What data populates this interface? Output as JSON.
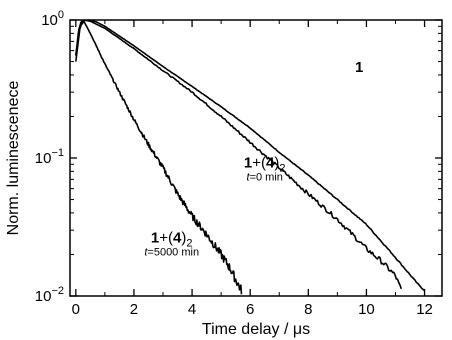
{
  "chart_data": {
    "type": "line",
    "title": "",
    "xlabel": "Time delay / μs",
    "ylabel": "Norm. luminescenece",
    "xlim": [
      -0.2,
      12.6
    ],
    "ylim": [
      0.01,
      1.0
    ],
    "yscale": "log",
    "grid": false,
    "legend": "none",
    "x_ticks": [
      0,
      2,
      4,
      6,
      8,
      10,
      12
    ],
    "x_tick_labels": [
      "0",
      "2",
      "4",
      "6",
      "8",
      "10",
      "12"
    ],
    "y_ticks": [
      0.01,
      0.1,
      1
    ],
    "y_tick_labels": {
      "y_1e0": {
        "base": "10",
        "exp": "0"
      },
      "y_1e-1": {
        "base": "10",
        "exp": "−1"
      },
      "y_1e-2": {
        "base": "10",
        "exp": "−2"
      }
    },
    "series": [
      {
        "label_bold": "1",
        "label_time": "",
        "color": "#000000",
        "x": [
          0.0,
          0.15,
          0.3,
          0.45,
          0.7,
          1.0,
          2.0,
          3.0,
          4.0,
          5.0,
          6.0,
          7.0,
          8.0,
          9.0,
          10.0,
          11.0,
          11.8,
          12.0
        ],
        "y": [
          0.5,
          0.9,
          0.99,
          1.0,
          0.97,
          0.9,
          0.65,
          0.46,
          0.33,
          0.235,
          0.165,
          0.11,
          0.075,
          0.05,
          0.033,
          0.019,
          0.012,
          0.011
        ]
      },
      {
        "label_bold": "1+(4)",
        "label_sub": "2",
        "label_time": "t=0 min",
        "color": "#000000",
        "x": [
          0.0,
          0.15,
          0.3,
          0.5,
          1.0,
          2.0,
          3.0,
          4.0,
          5.0,
          6.0,
          7.0,
          8.0,
          9.0,
          10.0,
          10.5,
          11.0,
          11.2
        ],
        "y": [
          0.55,
          0.95,
          1.0,
          0.98,
          0.87,
          0.62,
          0.43,
          0.3,
          0.2,
          0.13,
          0.085,
          0.055,
          0.036,
          0.022,
          0.018,
          0.014,
          0.011
        ]
      },
      {
        "label_bold": "1+(4)",
        "label_sub": "2",
        "label_time": "t=5000 min",
        "color": "#000000",
        "x": [
          0.0,
          0.1,
          0.2,
          0.3,
          0.5,
          1.0,
          1.5,
          2.0,
          2.5,
          3.0,
          3.5,
          4.0,
          4.5,
          5.0,
          5.3,
          5.6,
          5.7
        ],
        "y": [
          0.55,
          0.85,
          0.98,
          0.96,
          0.8,
          0.48,
          0.3,
          0.19,
          0.125,
          0.085,
          0.055,
          0.038,
          0.028,
          0.02,
          0.016,
          0.012,
          0.011
        ]
      }
    ],
    "annotations": [
      {
        "id": "a1",
        "bold": "1",
        "sub": "",
        "time": "",
        "x": 9.75,
        "y": 0.42
      },
      {
        "id": "a2",
        "bold": "1+(4)",
        "sub": "2",
        "time": "t=0 min",
        "x": 6.5,
        "y": 0.085
      },
      {
        "id": "a3",
        "bold": "1+(4)",
        "sub": "2",
        "time": "t=5000 min",
        "x": 3.3,
        "y": 0.0245
      }
    ]
  }
}
